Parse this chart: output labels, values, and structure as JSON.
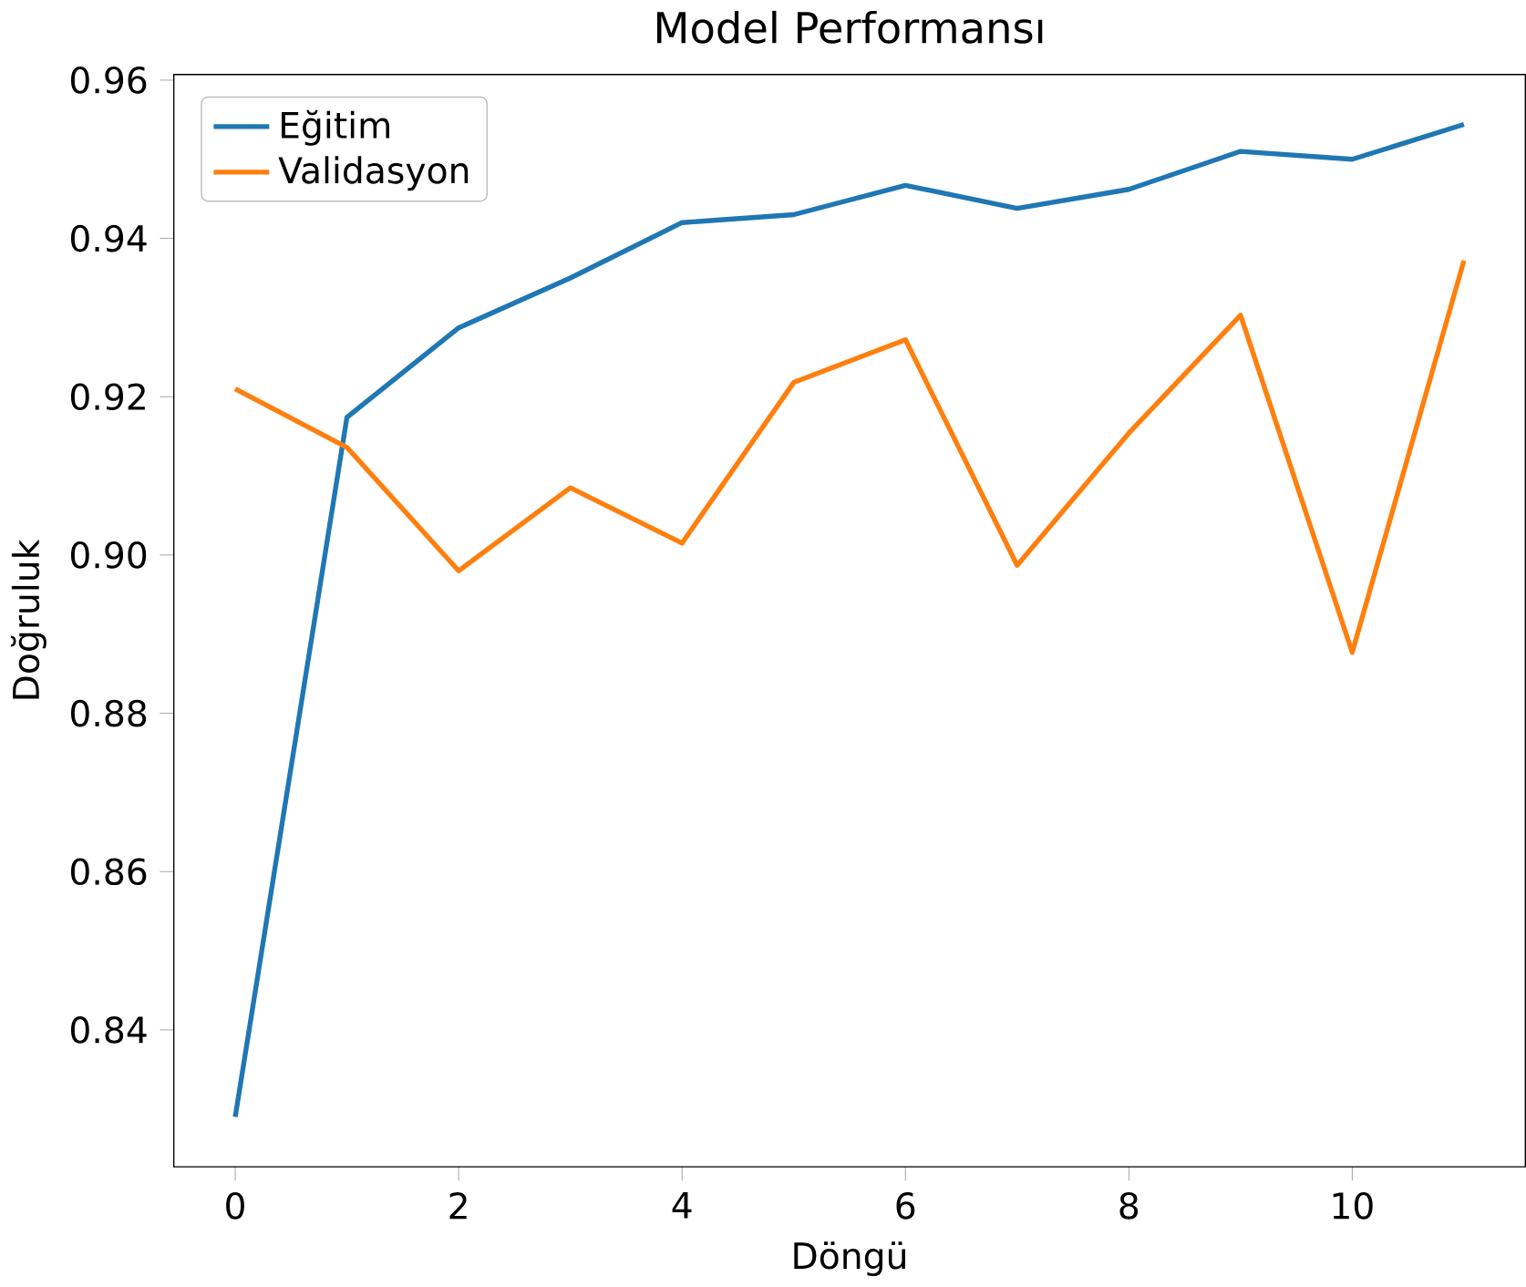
{
  "chart_data": {
    "type": "line",
    "title": "Model Performansı",
    "xlabel": "Döngü",
    "ylabel": "Doğruluk",
    "x": [
      0,
      1,
      2,
      3,
      4,
      5,
      6,
      7,
      8,
      9,
      10,
      11
    ],
    "series": [
      {
        "name": "Eğitim",
        "color": "#1f77b4",
        "values": [
          0.829,
          0.9174,
          0.9287,
          0.935,
          0.942,
          0.943,
          0.9467,
          0.9438,
          0.9462,
          0.951,
          0.95,
          0.9544
        ]
      },
      {
        "name": "Validasyon",
        "color": "#ff7f0e",
        "values": [
          0.921,
          0.9136,
          0.898,
          0.9085,
          0.9015,
          0.9218,
          0.9272,
          0.8987,
          0.9154,
          0.9303,
          0.8877,
          0.9372
        ]
      }
    ],
    "xlim": [
      -0.55,
      11.55
    ],
    "ylim": [
      0.8227,
      0.9607
    ],
    "xticks": [
      0,
      2,
      4,
      6,
      8,
      10
    ],
    "yticks": [
      0.84,
      0.86,
      0.88,
      {
        "value": 0.9,
        "label": "0.90"
      },
      0.92,
      0.94,
      0.96
    ],
    "legend": "top left",
    "grid": false,
    "marker": "none",
    "line_style": "solid"
  }
}
